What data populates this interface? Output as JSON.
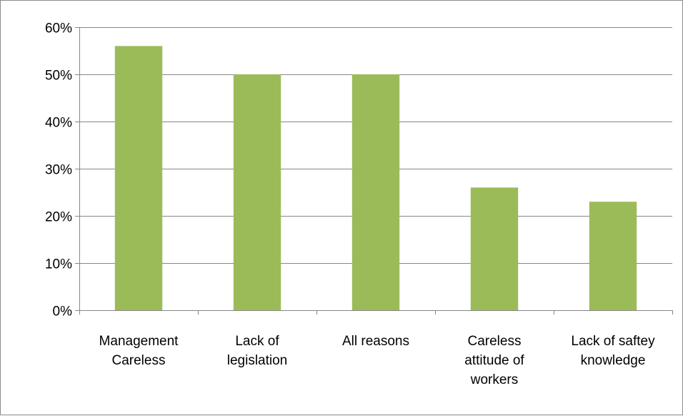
{
  "chart_data": {
    "type": "bar",
    "title": "",
    "xlabel": "",
    "ylabel": "",
    "categories": [
      [
        "Management",
        "Careless"
      ],
      [
        "Lack of",
        "legislation"
      ],
      [
        "All reasons"
      ],
      [
        "Careless",
        "attitude of",
        "workers"
      ],
      [
        "Lack of saftey",
        "knowledge"
      ]
    ],
    "values": [
      0.56,
      0.5,
      0.5,
      0.26,
      0.23
    ],
    "ylim": [
      0,
      0.6
    ],
    "yticks": [
      0,
      0.1,
      0.2,
      0.3,
      0.4,
      0.5,
      0.6
    ],
    "ytick_labels": [
      "0%",
      "10%",
      "20%",
      "30%",
      "40%",
      "50%",
      "60%"
    ],
    "grid": true,
    "legend": "none",
    "bar_color": "#9bbb59",
    "grid_color": "#868686",
    "axis_color": "#868686"
  }
}
